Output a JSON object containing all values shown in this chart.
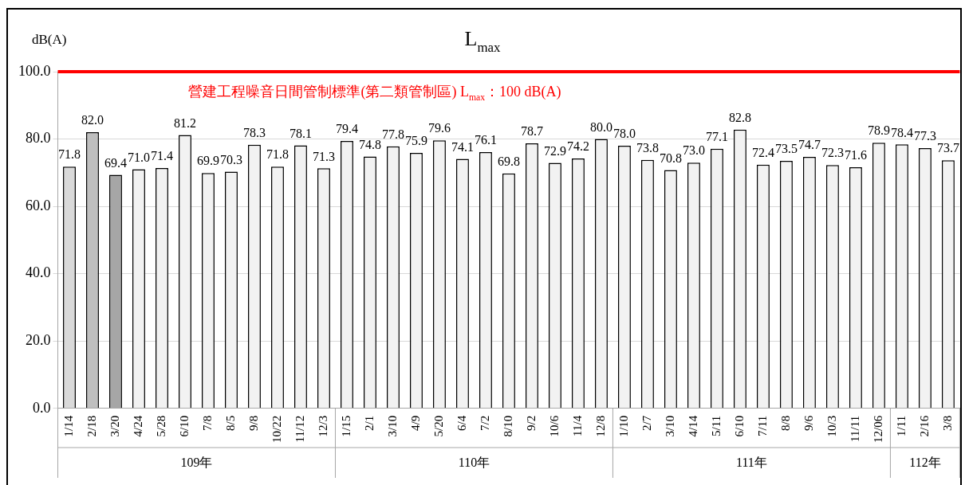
{
  "chart_data": {
    "type": "bar",
    "title": "L$_{max}$",
    "ylabel": "dB(A)",
    "categories": [
      "1/14",
      "2/18",
      "3/20",
      "4/24",
      "5/28",
      "6/10",
      "7/8",
      "8/5",
      "9/8",
      "10/22",
      "11/12",
      "12/3",
      "1/15",
      "2/1",
      "3/10",
      "4/9",
      "5/20",
      "6/4",
      "7/2",
      "8/10",
      "9/2",
      "10/6",
      "11/4",
      "12/8",
      "1/10",
      "2/7",
      "3/10",
      "4/14",
      "5/11",
      "6/10",
      "7/11",
      "8/8",
      "9/6",
      "10/3",
      "11/11",
      "12/06",
      "1/11",
      "2/16",
      "3/8"
    ],
    "values": [
      71.8,
      82.0,
      69.4,
      71.0,
      71.4,
      81.2,
      69.9,
      70.3,
      78.3,
      71.8,
      78.1,
      71.3,
      79.4,
      74.8,
      77.8,
      75.9,
      79.6,
      74.1,
      76.1,
      69.8,
      78.7,
      72.9,
      74.2,
      80.0,
      78.0,
      73.8,
      70.8,
      73.0,
      77.1,
      82.8,
      72.4,
      73.5,
      74.7,
      72.3,
      71.6,
      78.9,
      78.4,
      77.3,
      73.7
    ],
    "value_labels": [
      "71.8",
      "82.0",
      "69.4",
      "71.0",
      "71.4",
      "81.2",
      "69.9",
      "70.3",
      "78.3",
      "71.8",
      "78.1",
      "71.3",
      "79.4",
      "74.8",
      "77.8",
      "75.9",
      "79.6",
      "74.1",
      "76.1",
      "69.8",
      "78.7",
      "72.9",
      "74.2",
      "80.0",
      "78.0",
      "73.8",
      "70.8",
      "73.0",
      "77.1",
      "82.8",
      "72.4",
      "73.5",
      "74.7",
      "72.3",
      "71.6",
      "78.9",
      "78.4",
      "77.3",
      "73.7"
    ],
    "colors": [
      "#d9d9d9",
      "#bfbfbf",
      "#a6a6a6",
      "#f2f2f2",
      "#f2f2f2",
      "#f2f2f2",
      "#f2f2f2",
      "#f2f2f2",
      "#f2f2f2",
      "#f2f2f2",
      "#f2f2f2",
      "#f2f2f2",
      "#f2f2f2",
      "#f2f2f2",
      "#f2f2f2",
      "#f2f2f2",
      "#f2f2f2",
      "#f2f2f2",
      "#f2f2f2",
      "#f2f2f2",
      "#f2f2f2",
      "#f2f2f2",
      "#f2f2f2",
      "#f2f2f2",
      "#f2f2f2",
      "#f2f2f2",
      "#f2f2f2",
      "#f2f2f2",
      "#f2f2f2",
      "#f2f2f2",
      "#f2f2f2",
      "#f2f2f2",
      "#f2f2f2",
      "#f2f2f2",
      "#f2f2f2",
      "#f2f2f2",
      "#f2f2f2",
      "#f2f2f2",
      "#f2f2f2"
    ],
    "ylim": [
      0,
      100
    ],
    "yticks": [
      {
        "value": 0,
        "label": "0.0"
      },
      {
        "value": 20,
        "label": "20.0"
      },
      {
        "value": 40,
        "label": "40.0"
      },
      {
        "value": 60,
        "label": "60.0"
      },
      {
        "value": 80,
        "label": "80.0"
      },
      {
        "value": 100,
        "label": "100.0"
      }
    ],
    "grid": "y",
    "legend": false,
    "ref_lines": [
      {
        "axis": "y",
        "value": 100,
        "label": "營建工程噪音日間管制標準(第二類管制區) L$_{max}$：100 dB(A)",
        "color": "#ff0000"
      }
    ],
    "annotations": [
      "109年",
      "110年",
      "111年",
      "112年"
    ]
  }
}
